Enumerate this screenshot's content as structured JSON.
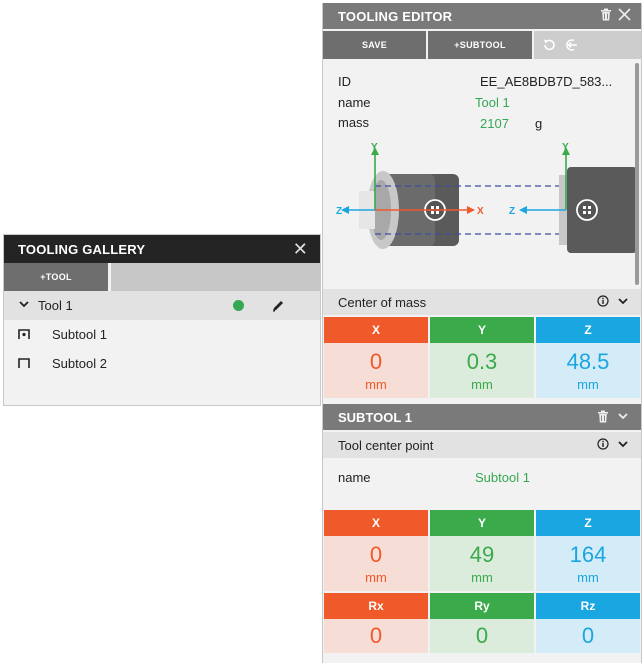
{
  "gallery": {
    "title": "TOOLING GALLERY",
    "add_tool_label": "+TOOL",
    "tool": {
      "label": "Tool 1",
      "status_color": "#35a853"
    },
    "subtools": [
      {
        "label": "Subtool 1"
      },
      {
        "label": "Subtool 2"
      }
    ]
  },
  "editor": {
    "title": "TOOLING EDITOR",
    "save_label": "SAVE",
    "subtool_label": "+SUBTOOL",
    "properties": {
      "id_label": "ID",
      "id_value": "EE_AE8BDB7D_583...",
      "name_label": "name",
      "name_value": "Tool 1",
      "mass_label": "mass",
      "mass_value": "2107",
      "mass_unit": "g"
    },
    "diagram": {
      "y_label": "Y",
      "z_label": "Z",
      "x_label": "X",
      "y2_label": "Y",
      "z2_label": "Z"
    },
    "center_of_mass": {
      "title": "Center of mass",
      "x_label": "X",
      "y_label": "Y",
      "z_label": "Z",
      "x": "0",
      "y": "0.3",
      "z": "48.5",
      "unit": "mm"
    },
    "subtool": {
      "title": "SUBTOOL 1",
      "tcp_title": "Tool center point",
      "name_label": "name",
      "name_value": "Subtool 1",
      "x_label": "X",
      "y_label": "Y",
      "z_label": "Z",
      "x": "0",
      "y": "49",
      "z": "164",
      "unit": "mm",
      "rx_label": "Rx",
      "ry_label": "Ry",
      "rz_label": "Rz",
      "rx": "0",
      "ry": "0",
      "rz": "0"
    }
  },
  "colors": {
    "x": "#f05a2a",
    "y": "#3aaa4b",
    "z": "#1aa6e0"
  }
}
